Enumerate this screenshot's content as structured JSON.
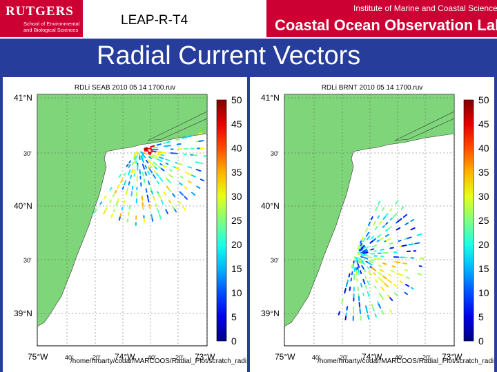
{
  "header": {
    "rutgers_name": "RUTGERS",
    "rutgers_school": "School of Environmental and Biological Sciences",
    "lab_institute": "Institute of Marine and Coastal Sciences",
    "lab_name": "Coastal Ocean Observation Lab",
    "slide_code": "LEAP-R-T4"
  },
  "slide": {
    "title": "Radial Current Vectors"
  },
  "panels": [
    {
      "title": "RDLi SEAB 2010 05 14 1700.ruv",
      "path": "/home/hroarty/codar/MARCOOS/Radial_Plot/scratch_radi",
      "y_labels": [
        "41°N",
        "30'",
        "40°N",
        "30'",
        "39°N"
      ],
      "x_labels": [
        "75°W",
        "40'",
        "20'",
        "74°W",
        "40'",
        "20'",
        "73°W"
      ],
      "colorbar_ticks": [
        "50",
        "45",
        "40",
        "35",
        "30",
        "25",
        "20",
        "15",
        "10",
        "5",
        "0"
      ]
    },
    {
      "title": "RDLi BRNT 2010 05 14 1700.ruv",
      "path": "/home/hroarty/codar/MARCOOS/Radial_Plot/scratch_radi",
      "y_labels": [
        "41°N",
        "30'",
        "40°N",
        "30'",
        "39°N"
      ],
      "x_labels": [
        "75°W",
        "40'",
        "20'",
        "74°W",
        "40'",
        "20'",
        "73°W"
      ],
      "colorbar_ticks": [
        "50",
        "45",
        "40",
        "35",
        "30",
        "25",
        "20",
        "15",
        "10",
        "5",
        "0"
      ]
    }
  ],
  "colors": {
    "brand_red": "#cc0033",
    "slide_blue": "#263d9b",
    "land_green": "#7fd67a"
  },
  "scale": {
    "min": 0,
    "max": 50
  }
}
